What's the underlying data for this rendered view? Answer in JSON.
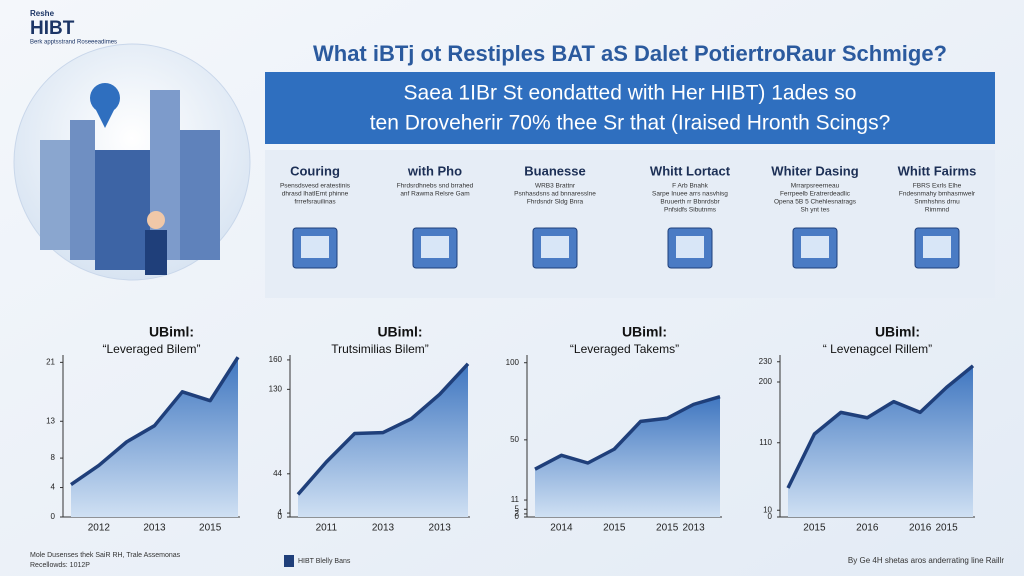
{
  "header": {
    "logo": "HIBT",
    "logo_top": "Reshe",
    "logo_sub": "Berk apptsstrand Roseeeadimes"
  },
  "title": "What iBTj ot Restiples BAT aS Dalet PotiertroRaur Schmige?",
  "banner": [
    "Saea 1IBr St eondatted with Her HIBT) 1ades so",
    "ten Droveherir 70% thee Sr that (Iraised Hronth Scings?"
  ],
  "features": [
    {
      "title": "Couring",
      "text": [
        "Psensdsvesd eratestinis",
        "dhrasd lhatlEmt phinne",
        "frrrefsrauilinas"
      ]
    },
    {
      "title": "with Pho",
      "text": [
        "Fhrdsrdhnebs snd brrahed",
        "anf Rawma Relsre Gam"
      ]
    },
    {
      "title": "Buanesse",
      "text": [
        "WRB3 Brattnr",
        "Psnhasdsns ad bnnaresslne",
        "Fhrdsndr Sldg Bnra"
      ]
    },
    {
      "title": "Whitt Lortact",
      "text": [
        "F Arb Bnahk",
        "Sarpe Inuee arrs nasvhisg",
        "Bruuerth rr Bbnrdsbr",
        "Pnfsidfs Sibutnms"
      ]
    },
    {
      "title": "Whiter Dasing",
      "text": [
        "Mrrarpsreerneau",
        "Ferrpeelb Eratrerdeadlic",
        "Opena 5B 5 Chehlesnatrags",
        "Sh ynt tes"
      ]
    },
    {
      "title": "Whitt Fairms",
      "text": [
        "FBRS Exrls Elhe",
        "Fndesnmahy bmhasmwelr",
        "Snmhshns drnu",
        "Rimmnd"
      ]
    }
  ],
  "footer": {
    "left": [
      "Mole Dusenses thek SaiR RH, Trale Assemonas",
      "Recellowds: 1012P"
    ],
    "center": "HIBT Blelly Bans",
    "right": "By Ge 4H shetas aros anderrating line Raillr"
  },
  "chart_data": [
    {
      "type": "area",
      "title": "UBiml:",
      "subtitle": "“Leveraged Bilem”",
      "color": "#1f3f7a",
      "categories": [
        null,
        "2012",
        null,
        "2013",
        null,
        "2015",
        null
      ],
      "values": [
        4.4,
        7,
        10.2,
        12.4,
        17,
        15.8,
        21.7
      ],
      "ylim": [
        0,
        22
      ],
      "yticks": [
        0,
        4,
        8,
        13,
        21
      ]
    },
    {
      "type": "area",
      "title": "UBiml:",
      "subtitle": "Trutsimilias Bilem”",
      "color": "#1f3f7a",
      "categories": [
        null,
        "2011",
        null,
        "2013",
        null,
        "2013",
        null
      ],
      "values": [
        23,
        56,
        85,
        86,
        100,
        125,
        156
      ],
      "ylim": [
        0,
        165
      ],
      "yticks": [
        0,
        4,
        44,
        130,
        160
      ]
    },
    {
      "type": "area",
      "title": "UBiml:",
      "subtitle": "“Leveraged Takems”",
      "color": "#1f3f7a",
      "categories": [
        null,
        "2014",
        null,
        "2015",
        null,
        "2015",
        "2013",
        null
      ],
      "values": [
        31,
        40,
        35,
        44,
        62,
        64,
        73,
        78
      ],
      "ylim": [
        0,
        105
      ],
      "yticks": [
        0,
        2,
        5,
        11,
        50,
        100
      ]
    },
    {
      "type": "area",
      "title": "UBiml:",
      "subtitle": "“ Levenagcel Rillem”",
      "color": "#1f3f7a",
      "categories": [
        null,
        "2015",
        null,
        "2016",
        null,
        "2016",
        "2015",
        null
      ],
      "values": [
        43,
        123,
        155,
        147,
        171,
        155,
        192,
        224
      ],
      "ylim": [
        0,
        240
      ],
      "yticks": [
        0,
        10,
        110,
        200,
        230
      ]
    }
  ]
}
